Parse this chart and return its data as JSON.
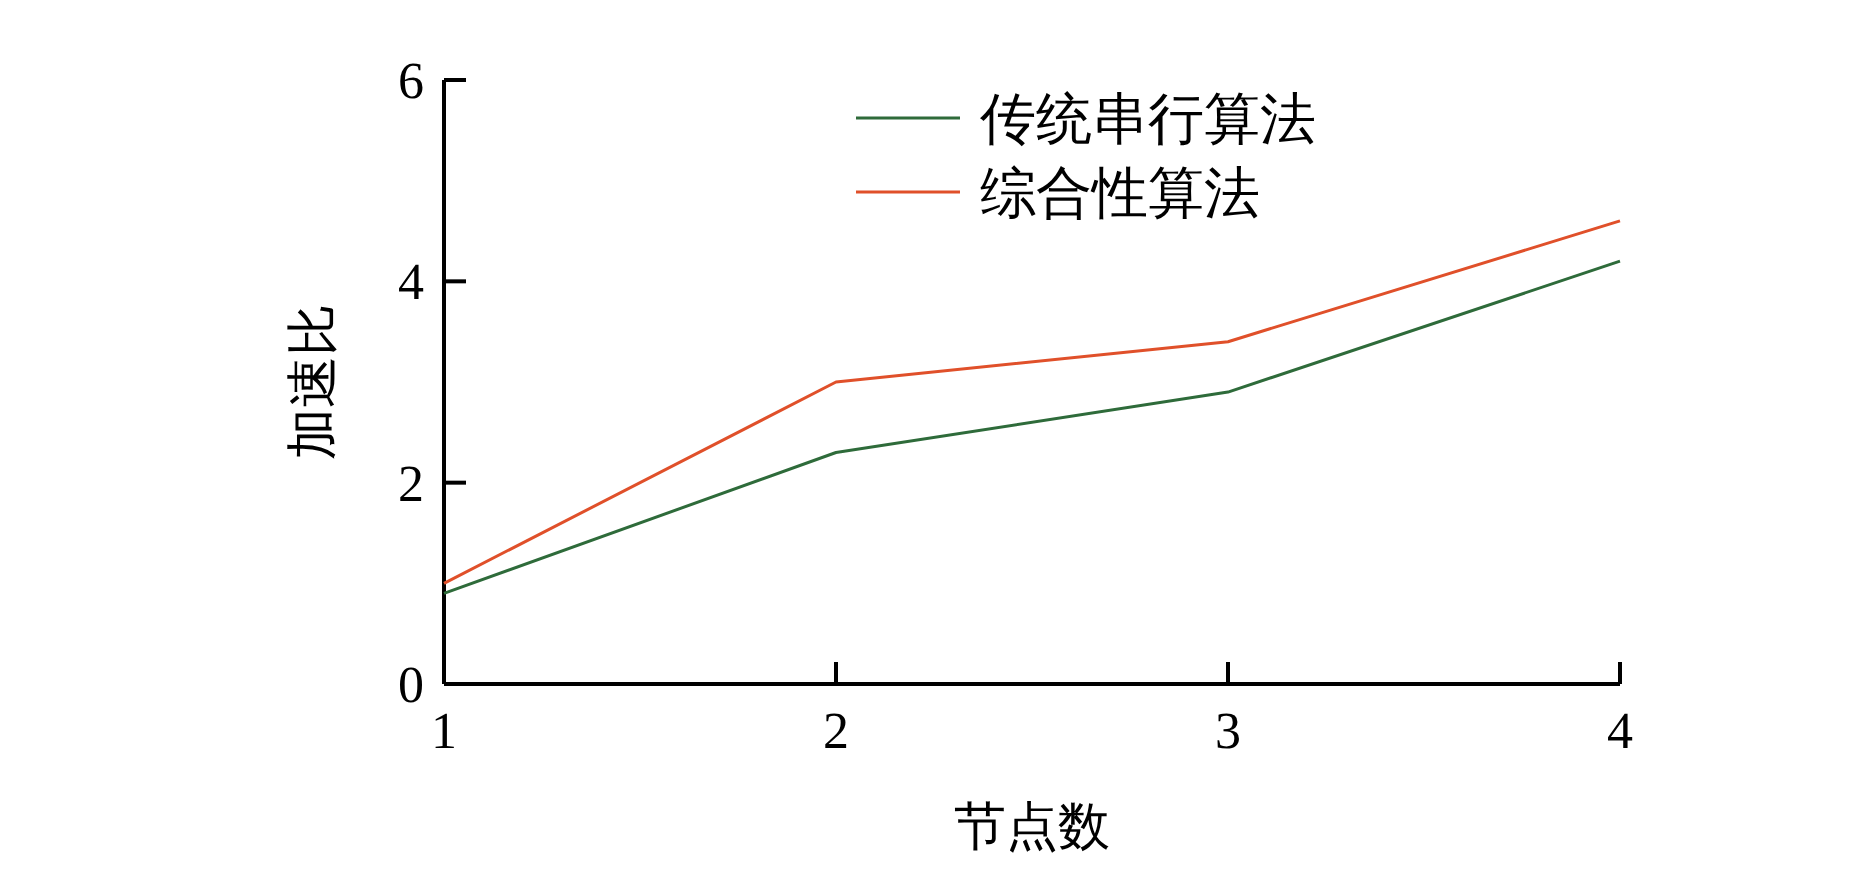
{
  "chart_data": {
    "type": "line",
    "xlabel": "节点数",
    "ylabel": "加速比",
    "x": [
      1,
      2,
      3,
      4
    ],
    "xlim": [
      1,
      4
    ],
    "xticks": [
      1,
      2,
      3,
      4
    ],
    "ylim": [
      0,
      6
    ],
    "yticks": [
      0,
      2,
      4,
      6
    ],
    "grid": false,
    "legend": "top",
    "marker": "none",
    "line_style": "solid",
    "series": [
      {
        "name": "传统串行算法",
        "color": "#2e6b3a",
        "values": [
          0.9,
          2.3,
          2.9,
          4.2
        ]
      },
      {
        "name": "综合性算法",
        "color": "#e0502a",
        "values": [
          1.0,
          3.0,
          3.4,
          4.6
        ]
      }
    ]
  }
}
